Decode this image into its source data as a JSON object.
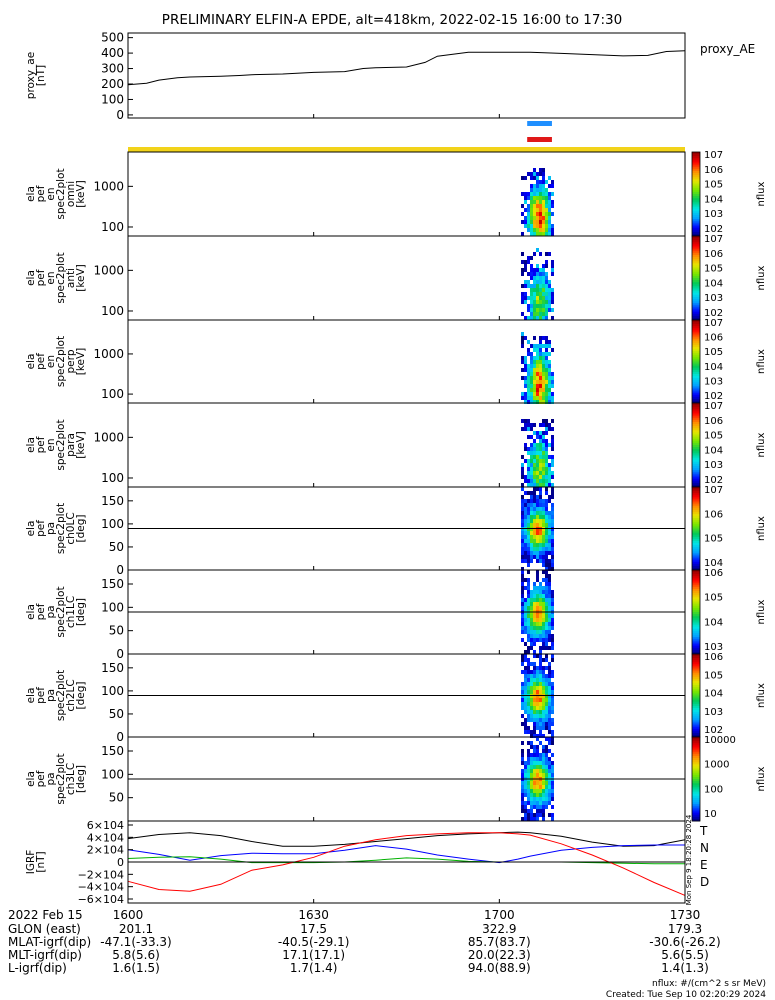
{
  "title": "PRELIMINARY ELFIN-A EPDE, alt=418km, 2022-02-15 16:00 to 17:30",
  "colors": {
    "quality_bar": "#f2d31a",
    "blue_bar": "#1f8fff",
    "red_bar": "#e01818",
    "bx": "#0000ff",
    "by": "#00b000",
    "bz": "#ff0000",
    "bmag": "#000000"
  },
  "chart_data": [
    {
      "type": "line",
      "name": "proxy_ae",
      "ylabel": "proxy_ae\n[nT]",
      "legend": "proxy_AE",
      "ylim": [
        -20,
        530
      ],
      "yticks": [
        "500",
        "400",
        "300",
        "200",
        "100",
        "0"
      ],
      "x_minutes": [
        0,
        3,
        5,
        8,
        10,
        15,
        18,
        20,
        25,
        30,
        35,
        38,
        40,
        45,
        48,
        50,
        55,
        60,
        65,
        70,
        75,
        80,
        84,
        87,
        90
      ],
      "values": [
        195,
        205,
        225,
        240,
        245,
        250,
        255,
        260,
        265,
        275,
        280,
        300,
        305,
        310,
        340,
        380,
        405,
        405,
        405,
        398,
        390,
        382,
        385,
        410,
        415
      ]
    },
    {
      "type": "heatmap",
      "name": "ela_pef_en_spec2plot_omni",
      "ylabel": "ela\npef\nen\nspec2plot\nomni\n[keV]",
      "yscale": "log",
      "ylim": [
        60,
        7000
      ],
      "yticks": [
        "1000",
        "100"
      ],
      "x_range_minutes": [
        63.5,
        68.5
      ],
      "colorbar": {
        "label": "nflux",
        "range": "10^2 - 10^7",
        "ticks": [
          "10^7",
          "10^6",
          "10^5",
          "10^4",
          "10^3",
          "10^2"
        ]
      }
    },
    {
      "type": "heatmap",
      "name": "ela_pef_en_spec2plot_anti",
      "ylabel": "ela\npef\nen\nspec2plot\nanti\n[keV]",
      "yscale": "log",
      "ylim": [
        60,
        7000
      ],
      "yticks": [
        "1000",
        "100"
      ],
      "x_range_minutes": [
        63.5,
        68.5
      ],
      "colorbar": {
        "label": "nflux",
        "range": "10^2 - 10^7",
        "ticks": [
          "10^7",
          "10^6",
          "10^5",
          "10^4",
          "10^3",
          "10^2"
        ]
      }
    },
    {
      "type": "heatmap",
      "name": "ela_pef_en_spec2plot_perp",
      "ylabel": "ela\npef\nen\nspec2plot\nperp\n[keV]",
      "yscale": "log",
      "ylim": [
        60,
        7000
      ],
      "yticks": [
        "1000",
        "100"
      ],
      "x_range_minutes": [
        63.5,
        68.5
      ],
      "colorbar": {
        "label": "nflux",
        "range": "10^2 - 10^7",
        "ticks": [
          "10^7",
          "10^6",
          "10^5",
          "10^4",
          "10^3",
          "10^2"
        ]
      }
    },
    {
      "type": "heatmap",
      "name": "ela_pef_en_spec2plot_para",
      "ylabel": "ela\npef\nen\nspec2plot\npara\n[keV]",
      "yscale": "log",
      "ylim": [
        60,
        7000
      ],
      "yticks": [
        "1000",
        "100"
      ],
      "x_range_minutes": [
        63.5,
        68.5
      ],
      "colorbar": {
        "label": "nflux",
        "range": "10^2 - 10^7",
        "ticks": [
          "10^7",
          "10^6",
          "10^5",
          "10^4",
          "10^3",
          "10^2"
        ]
      }
    },
    {
      "type": "heatmap",
      "name": "ela_pef_pa_spec2plot_ch0LC",
      "ylabel": "ela\npef\npa\nspec2plot\nch0LC\n[deg]",
      "ylim": [
        0,
        180
      ],
      "yticks": [
        "150",
        "100",
        "50",
        "0"
      ],
      "reference_line": 90,
      "x_range_minutes": [
        63.5,
        68.5
      ],
      "colorbar": {
        "label": "nflux",
        "ticks": [
          "10^7",
          "10^6",
          "10^5",
          "10^4"
        ]
      }
    },
    {
      "type": "heatmap",
      "name": "ela_pef_pa_spec2plot_ch1LC",
      "ylabel": "ela\npef\npa\nspec2plot\nch1LC\n[deg]",
      "ylim": [
        0,
        180
      ],
      "yticks": [
        "150",
        "100",
        "50",
        "0"
      ],
      "reference_line": 90,
      "x_range_minutes": [
        63.5,
        68.5
      ],
      "colorbar": {
        "label": "nflux",
        "ticks": [
          "10^6",
          "10^5",
          "10^4",
          "10^3"
        ]
      }
    },
    {
      "type": "heatmap",
      "name": "ela_pef_pa_spec2plot_ch2LC",
      "ylabel": "ela\npef\npa\nspec2plot\nch2LC\n[deg]",
      "ylim": [
        0,
        180
      ],
      "yticks": [
        "150",
        "100",
        "50",
        "0"
      ],
      "reference_line": 90,
      "x_range_minutes": [
        63.5,
        68.5
      ],
      "colorbar": {
        "label": "nflux",
        "ticks": [
          "10^6",
          "10^5",
          "10^4",
          "10^3",
          "10^2"
        ]
      }
    },
    {
      "type": "heatmap",
      "name": "ela_pef_pa_spec2plot_ch3LC",
      "ylabel": "ela\npef\npa\nspec2plot\nch3LC\n[deg]",
      "ylim": [
        0,
        180
      ],
      "yticks": [
        "150",
        "100",
        "50"
      ],
      "reference_line": 90,
      "x_range_minutes": [
        63.5,
        68.5
      ],
      "colorbar": {
        "label": "nflux",
        "ticks": [
          "10000",
          "1000",
          "100",
          "10"
        ]
      }
    },
    {
      "type": "line",
      "name": "igrf",
      "ylabel": "IGRF\n[nT]",
      "ylim": [
        -70000,
        70000
      ],
      "yticks": [
        "6×10^4",
        "4×10^4",
        "2×10^4",
        "0",
        "−2×10^4",
        "−4×10^4",
        "−6×10^4"
      ],
      "x_minutes": [
        0,
        5,
        10,
        15,
        20,
        25,
        30,
        35,
        40,
        45,
        50,
        55,
        60,
        63,
        65,
        70,
        75,
        80,
        85,
        90
      ],
      "series": [
        {
          "name": "T",
          "color": "#000000",
          "values": [
            40000,
            47000,
            50000,
            45000,
            35000,
            27000,
            27000,
            30000,
            35000,
            40000,
            45000,
            48000,
            50000,
            51000,
            50000,
            44000,
            34000,
            27000,
            28000,
            38000
          ]
        },
        {
          "name": "N",
          "color": "#0000ff",
          "values": [
            21000,
            13000,
            3000,
            11000,
            15000,
            14000,
            14000,
            20000,
            28000,
            22000,
            12000,
            5000,
            -1000,
            5000,
            10000,
            20000,
            25000,
            28000,
            29000,
            29000
          ]
        },
        {
          "name": "E",
          "color": "#00b000",
          "values": [
            6000,
            8000,
            9000,
            5000,
            -1000,
            -1000,
            -1000,
            0,
            3000,
            7000,
            5000,
            1000,
            0,
            0,
            0,
            0,
            -1000,
            -2000,
            -3000,
            -3000
          ]
        },
        {
          "name": "D",
          "color": "#ff0000",
          "values": [
            -33000,
            -47000,
            -50000,
            -38000,
            -14000,
            -5000,
            8000,
            27000,
            38000,
            45000,
            48000,
            50000,
            50000,
            48000,
            46000,
            31000,
            12000,
            -10000,
            -35000,
            -57000
          ]
        }
      ]
    }
  ],
  "time_axis": {
    "ticks": [
      "1600",
      "1630",
      "1700",
      "1730"
    ],
    "labels_col_header": "2022 Feb 15",
    "rows": [
      {
        "label": "GLON (east)",
        "values": [
          "201.1",
          "17.5",
          "322.9",
          "179.3"
        ]
      },
      {
        "label": "MLAT-igrf(dip)",
        "values": [
          "-47.1(-33.3)",
          "-40.5(-29.1)",
          "85.7(83.7)",
          "-30.6(-26.2)"
        ]
      },
      {
        "label": "MLT-igrf(dip)",
        "values": [
          "5.8(5.6)",
          "17.1(17.1)",
          "20.0(22.3)",
          "5.6(5.5)"
        ]
      },
      {
        "label": "L-igrf(dip)",
        "values": [
          "1.6(1.5)",
          "1.7(1.4)",
          "94.0(88.9)",
          "1.4(1.3)"
        ]
      }
    ]
  },
  "footer": {
    "units": "nflux: #/(cm^2 s sr MeV)",
    "created": "Created: Tue Sep 10 02:20:29 2024",
    "side_stamp": "Mon Sep 9 18:20:28 2024"
  }
}
